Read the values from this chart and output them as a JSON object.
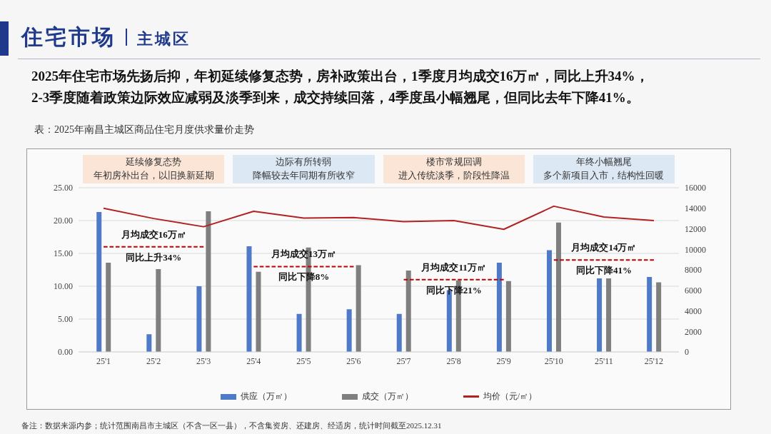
{
  "chart_data": {
    "type": "bar",
    "title": "住宅市场",
    "subtitle": "主城区",
    "categories": [
      "25'1",
      "25'2",
      "25'3",
      "25'4",
      "25'5",
      "25'6",
      "25'7",
      "25'8",
      "25'9",
      "25'10",
      "25'11",
      "25'12"
    ],
    "series": [
      {
        "name": "供应（万㎡）",
        "color": "#4f7ac7",
        "values": [
          21.3,
          2.7,
          10.0,
          16.1,
          5.8,
          6.5,
          5.8,
          9.4,
          13.6,
          15.5,
          11.2,
          11.4
        ]
      },
      {
        "name": "成交（万㎡）",
        "color": "#7f7f7f",
        "values": [
          13.6,
          12.6,
          21.4,
          12.2,
          15.9,
          13.2,
          12.4,
          10.9,
          10.8,
          19.7,
          11.2,
          10.6
        ]
      },
      {
        "name": "均价（元/㎡）",
        "type": "line",
        "axis": "y2",
        "color": "#b22222",
        "values": [
          14000,
          13000,
          12200,
          13700,
          13050,
          13100,
          12700,
          12800,
          11950,
          14200,
          13150,
          12800
        ]
      },
      {
        "type": "line",
        "line_style": "dashed",
        "color": "#c00000",
        "values": [
          16,
          16,
          16,
          null,
          null,
          null,
          null,
          null,
          null,
          null,
          null,
          null
        ]
      },
      {
        "type": "line",
        "line_style": "dashed",
        "color": "#c00000",
        "values": [
          null,
          null,
          null,
          13,
          13,
          13,
          null,
          null,
          null,
          null,
          null,
          null
        ]
      },
      {
        "type": "line",
        "line_style": "dashed",
        "color": "#c00000",
        "values": [
          null,
          null,
          null,
          null,
          null,
          null,
          11,
          11,
          11,
          null,
          null,
          null
        ]
      },
      {
        "type": "line",
        "line_style": "dashed",
        "color": "#c00000",
        "values": [
          null,
          null,
          null,
          null,
          null,
          null,
          null,
          null,
          null,
          14,
          14,
          14
        ]
      }
    ],
    "ylim": [
      0,
      25
    ],
    "yticks": [
      {
        "value": 0,
        "label": "0.00"
      },
      {
        "value": 5,
        "label": "5.00"
      },
      {
        "value": 10,
        "label": "10.00"
      },
      {
        "value": 15,
        "label": "15.00"
      },
      {
        "value": 20,
        "label": "20.00"
      },
      {
        "value": 25,
        "label": "25.00"
      }
    ],
    "y2lim": [
      0,
      16000
    ],
    "y2ticks": [
      0,
      2000,
      4000,
      6000,
      8000,
      10000,
      12000,
      14000,
      16000
    ],
    "grid": "y",
    "legend": "bottom",
    "marker": "none",
    "annotations": [
      "2025年住宅市场先扬后抑，年初延续修复态势，房补政策出台，1季度月均成交16万㎡，同比上升34%，\n2-3季度随着政策边际效应减弱及淡季到来，成交持续回落，4季度虽小幅翘尾，但同比去年下降41%。",
      "表：2025年南昌主城区商品住宅月度供求量价走势",
      "延续修复态势",
      "年初房补出台，以旧换新延期",
      "边际有所转弱",
      "降幅较去年同期有所收窄",
      "楼市常规回调",
      "进入传统淡季，阶段性降温",
      "年终小幅翘尾",
      "多个新项目入市，结构性回暖",
      "月均成交16万㎡",
      "同比上升34%",
      "月均成交13万㎡",
      "同比下降8%",
      "月均成交11万㎡",
      "同比下降21%",
      "月均成交14万㎡",
      "同比下降41%",
      "备注：数据来源内参；统计范围南昌市主城区（不含一区一县），不含集资房、还建房、经适房，统计时间截至2025.12.31"
    ]
  }
}
